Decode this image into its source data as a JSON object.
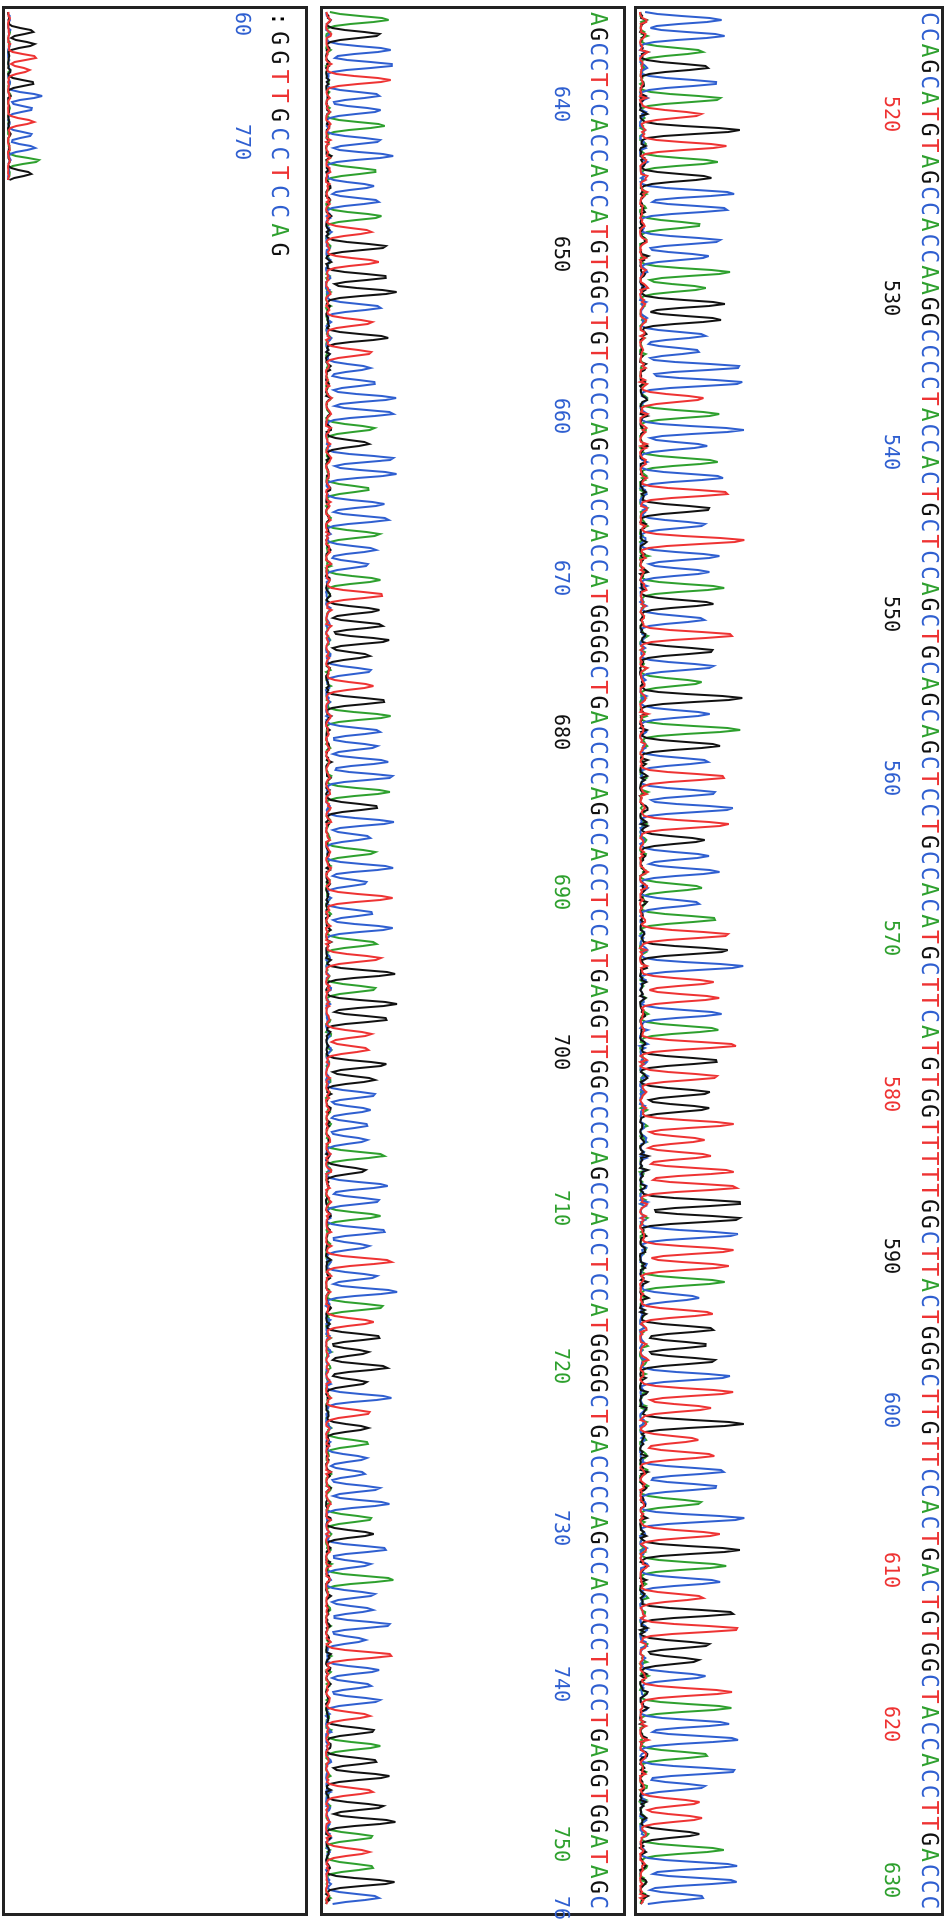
{
  "panels": [
    {
      "sequence": "CCAGCATGTAGCCACCAAGGCCCCTACCACTGCTCCAGCTGCAGCAGCTCCTGCCACATGCTTCATGTGGTTTTTGGCTTACTGGGCTTGTTCCACTGACTGTGGCTACCACCTTGACCC",
      "positions": [
        {
          "label": "520",
          "color": "red"
        },
        {
          "label": "530",
          "color": "black"
        },
        {
          "label": "540",
          "color": "blue"
        },
        {
          "label": "550",
          "color": "black"
        },
        {
          "label": "560",
          "color": "blue"
        },
        {
          "label": "570",
          "color": "green"
        },
        {
          "label": "580",
          "color": "red"
        },
        {
          "label": "590",
          "color": "black"
        },
        {
          "label": "600",
          "color": "blue"
        },
        {
          "label": "610",
          "color": "red"
        },
        {
          "label": "620",
          "color": "red"
        },
        {
          "label": "630",
          "color": "green"
        }
      ]
    },
    {
      "sequence": "AGCCTCCACCACCATGTGGCTGTCCCCAGCCACCACCATGGGGCTGACCCCAGCCACCTCCATGAGGTTGGCCCCAGCCACCTCCATGGGGCTGACCCCAGCCACCCCTCCCTGAGGTGGATAGC",
      "positions": [
        {
          "label": "640",
          "color": "blue"
        },
        {
          "label": "650",
          "color": "black"
        },
        {
          "label": "660",
          "color": "blue"
        },
        {
          "label": "670",
          "color": "blue"
        },
        {
          "label": "680",
          "color": "black"
        },
        {
          "label": "690",
          "color": "green"
        },
        {
          "label": "700",
          "color": "black"
        },
        {
          "label": "710",
          "color": "green"
        },
        {
          "label": "720",
          "color": "green"
        },
        {
          "label": "730",
          "color": "blue"
        },
        {
          "label": "740",
          "color": "blue"
        },
        {
          "label": "750",
          "color": "green"
        },
        {
          "label": "76",
          "color": "blue"
        }
      ]
    },
    {
      "sequence": ":GGTTGCCTCCAG",
      "positions": [
        {
          "label": "60",
          "color": "blue"
        },
        {
          "label": "770",
          "color": "blue"
        }
      ]
    }
  ],
  "colors": {
    "A": "#2ea02e",
    "C": "#2f5fd0",
    "G": "#111111",
    "T": "#ee3333"
  }
}
